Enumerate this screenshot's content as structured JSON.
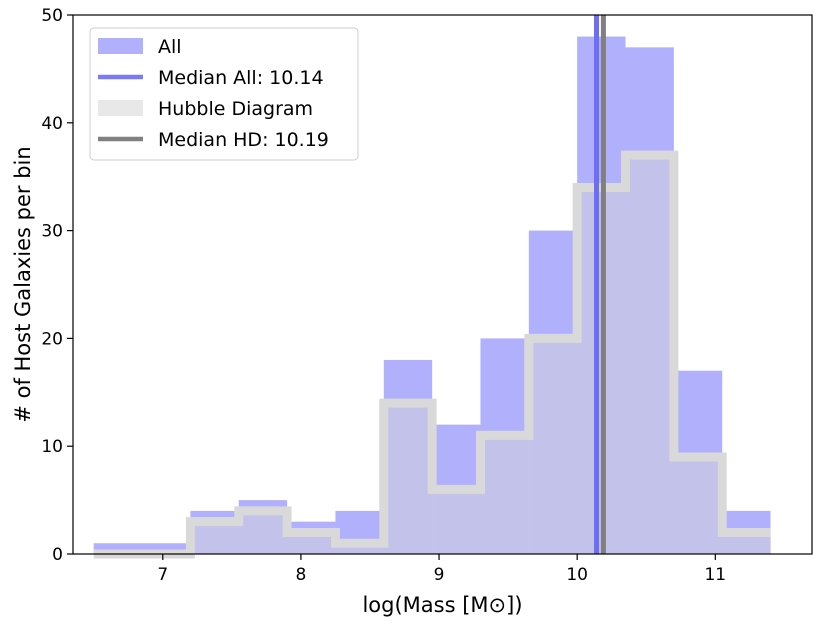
{
  "chart_data": {
    "type": "histogram",
    "xlabel": "log(Mass [M⊙])",
    "ylabel": "# of Host Galaxies per bin",
    "xlim": [
      6.35,
      11.7
    ],
    "ylim": [
      0,
      50
    ],
    "x_ticks": [
      7,
      8,
      9,
      10,
      11
    ],
    "y_ticks": [
      0,
      10,
      20,
      30,
      40,
      50
    ],
    "bin_edges": [
      6.5,
      6.85,
      7.2,
      7.55,
      7.9,
      8.25,
      8.6,
      8.95,
      9.3,
      9.65,
      10.0,
      10.35,
      10.7,
      11.05,
      11.4
    ],
    "series": [
      {
        "name": "All",
        "style": "filled",
        "color": "#b0b0fc",
        "bin_lefts": [
          6.5,
          7.2,
          7.55,
          7.9,
          8.25,
          8.6,
          8.95,
          9.3,
          9.65,
          10.0,
          10.35,
          10.7,
          11.05
        ],
        "bin_rights": [
          7.2,
          7.55,
          7.9,
          8.25,
          8.6,
          8.95,
          9.3,
          9.65,
          10.0,
          10.35,
          10.7,
          11.05,
          11.4
        ],
        "values": [
          1,
          4,
          5,
          3,
          4,
          18,
          12,
          20,
          30,
          48,
          47,
          17,
          4
        ]
      },
      {
        "name": "Hubble Diagram",
        "style": "step-filled",
        "color": "#d9d9d9",
        "fill_color": "#c6c6e6",
        "bin_lefts": [
          6.5,
          7.2,
          7.55,
          7.9,
          8.25,
          8.6,
          8.95,
          9.3,
          9.65,
          10.0,
          10.35,
          10.7,
          11.05
        ],
        "bin_rights": [
          7.2,
          7.55,
          7.9,
          8.25,
          8.6,
          8.95,
          9.3,
          9.65,
          10.0,
          10.35,
          10.7,
          11.05,
          11.4
        ],
        "values": [
          0,
          3,
          4,
          2,
          1,
          14,
          6,
          11,
          20,
          34,
          37,
          9,
          2
        ]
      }
    ],
    "vlines": [
      {
        "name": "Median All: 10.14",
        "x": 10.14,
        "color": "#6e6ef5"
      },
      {
        "name": "Median HD: 10.19",
        "x": 10.19,
        "color": "#808080"
      }
    ],
    "legend": {
      "position": "top-left",
      "entries": [
        {
          "label": "All",
          "kind": "patch",
          "color": "#b0b0fc"
        },
        {
          "label": "Median All: 10.14",
          "kind": "line",
          "color": "#7a7af5"
        },
        {
          "label": "Hubble Diagram",
          "kind": "patch",
          "color": "#e8e8e8"
        },
        {
          "label": "Median HD: 10.19",
          "kind": "line",
          "color": "#808080"
        }
      ]
    },
    "grid": false
  }
}
